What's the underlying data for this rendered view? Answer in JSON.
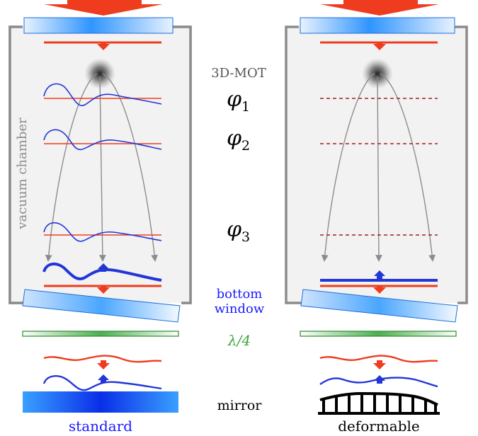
{
  "labels": {
    "vacuum_chamber": "vacuum chamber",
    "mot": "3D-MOT",
    "phi1_base": "φ",
    "phi1_sub": "1",
    "phi2_base": "φ",
    "phi2_sub": "2",
    "phi3_base": "φ",
    "phi3_sub": "3",
    "bottom": "bottom",
    "window": "window",
    "lambda": "λ/4",
    "mirror": "mirror",
    "standard": "standard",
    "deformable": "deformable"
  },
  "colors": {
    "laser_red": "#f03c1e",
    "wave_blue": "#2236d8",
    "label_blue": "#1a1aff",
    "plate_green": "#3aa53a",
    "chamber_gray": "#8c8c8c",
    "chamber_fill": "#f2f2f2",
    "window_blue": "#3a9bff"
  }
}
